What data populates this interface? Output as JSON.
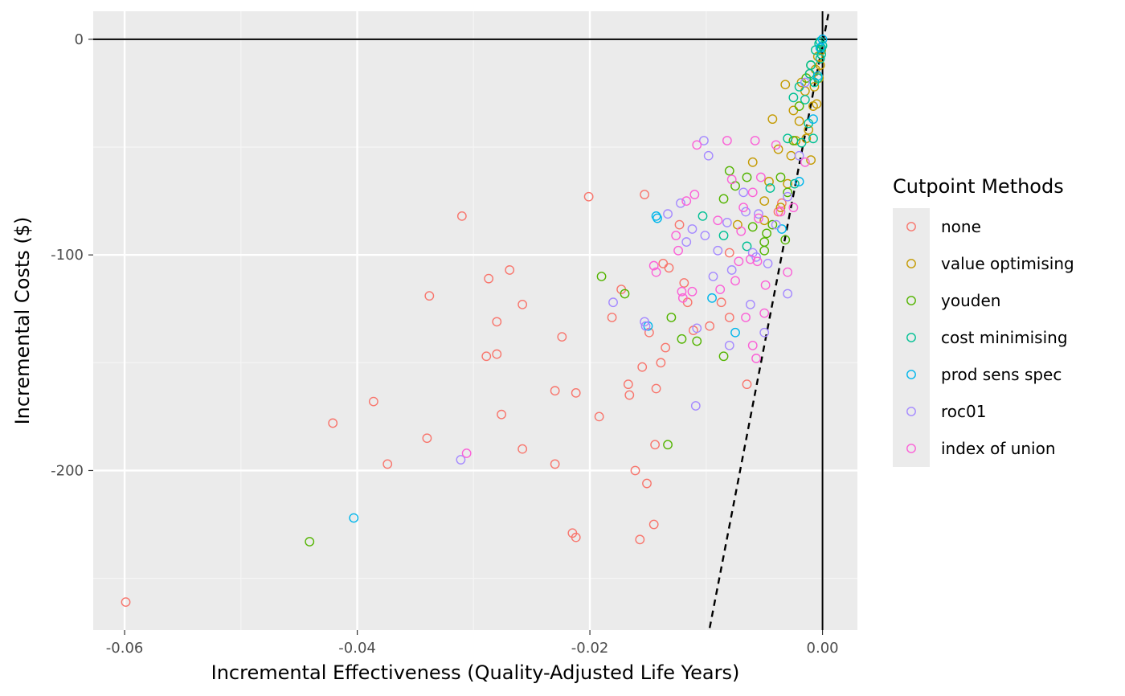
{
  "chart_data": {
    "type": "scatter",
    "title": "",
    "xlabel": "Incremental Effectiveness (Quality-Adjusted Life Years)",
    "ylabel": "Incremental Costs ($)",
    "xlim": [
      -0.0627,
      0.003
    ],
    "ylim": [
      -274,
      13
    ],
    "x_ticks": [
      -0.06,
      -0.04,
      -0.02,
      0.0
    ],
    "x_tick_labels": [
      "-0.06",
      "-0.04",
      "-0.02",
      "0.00"
    ],
    "y_ticks": [
      0,
      -100,
      -200
    ],
    "y_tick_labels": [
      "0",
      "-100",
      "-200"
    ],
    "grid": true,
    "legend_title": "Cutpoint Methods",
    "legend_position": "right",
    "reference_lines": {
      "horizontal_y": 0,
      "vertical_x": 0,
      "threshold_line": {
        "style": "dashed",
        "points": [
          [
            -0.0097,
            -273
          ],
          [
            0.00055,
            13
          ]
        ]
      }
    },
    "series": [
      {
        "name": "none",
        "color": "#F8766D",
        "points": [
          [
            -0.0599,
            -261
          ],
          [
            -0.0421,
            -178
          ],
          [
            -0.0386,
            -168
          ],
          [
            -0.0374,
            -197
          ],
          [
            -0.034,
            -185
          ],
          [
            -0.0338,
            -119
          ],
          [
            -0.031,
            -82
          ],
          [
            -0.0287,
            -111
          ],
          [
            -0.0289,
            -147
          ],
          [
            -0.028,
            -146
          ],
          [
            -0.028,
            -131
          ],
          [
            -0.0276,
            -174
          ],
          [
            -0.0269,
            -107
          ],
          [
            -0.0258,
            -123
          ],
          [
            -0.0258,
            -190
          ],
          [
            -0.023,
            -163
          ],
          [
            -0.023,
            -197
          ],
          [
            -0.0224,
            -138
          ],
          [
            -0.0215,
            -229
          ],
          [
            -0.0212,
            -231
          ],
          [
            -0.0212,
            -164
          ],
          [
            -0.0201,
            -73
          ],
          [
            -0.0192,
            -175
          ],
          [
            -0.0181,
            -129
          ],
          [
            -0.0173,
            -116
          ],
          [
            -0.0167,
            -160
          ],
          [
            -0.0166,
            -165
          ],
          [
            -0.0161,
            -200
          ],
          [
            -0.0157,
            -232
          ],
          [
            -0.0155,
            -152
          ],
          [
            -0.0153,
            -72
          ],
          [
            -0.0151,
            -206
          ],
          [
            -0.0149,
            -136
          ],
          [
            -0.0145,
            -225
          ],
          [
            -0.0144,
            -188
          ],
          [
            -0.0143,
            -162
          ],
          [
            -0.0139,
            -150
          ],
          [
            -0.0137,
            -104
          ],
          [
            -0.0135,
            -143
          ],
          [
            -0.0132,
            -106
          ],
          [
            -0.0123,
            -86
          ],
          [
            -0.0119,
            -113
          ],
          [
            -0.0116,
            -122
          ],
          [
            -0.0111,
            -135
          ],
          [
            -0.0097,
            -133
          ],
          [
            -0.0087,
            -122
          ],
          [
            -0.008,
            -99
          ],
          [
            -0.008,
            -129
          ],
          [
            -0.0065,
            -160
          ],
          [
            -0.0038,
            -80
          ],
          [
            -0.0035,
            -76
          ]
        ]
      },
      {
        "name": "value optimising",
        "color": "#C49A00",
        "points": [
          [
            -0.0073,
            -86
          ],
          [
            -0.006,
            -57
          ],
          [
            -0.005,
            -84
          ],
          [
            -0.005,
            -75
          ],
          [
            -0.0046,
            -66
          ],
          [
            -0.0043,
            -37
          ],
          [
            -0.0038,
            -51
          ],
          [
            -0.0036,
            -78
          ],
          [
            -0.0032,
            -21
          ],
          [
            -0.003,
            -67
          ],
          [
            -0.0027,
            -54
          ],
          [
            -0.0025,
            -33
          ],
          [
            -0.0023,
            -47
          ],
          [
            -0.002,
            -38
          ],
          [
            -0.0018,
            -20
          ],
          [
            -0.0015,
            -24
          ],
          [
            -0.0014,
            -46
          ],
          [
            -0.0012,
            -42
          ],
          [
            -0.0011,
            -16
          ],
          [
            -0.001,
            -56
          ],
          [
            -0.0008,
            -31
          ],
          [
            -0.0007,
            -22
          ],
          [
            -0.0006,
            -14
          ],
          [
            -0.0005,
            -30
          ],
          [
            -0.0004,
            -8
          ],
          [
            -0.0003,
            -18
          ],
          [
            -0.0002,
            -12
          ],
          [
            -0.0001,
            -5
          ]
        ]
      },
      {
        "name": "youden",
        "color": "#53B400",
        "points": [
          [
            -0.0441,
            -233
          ],
          [
            -0.019,
            -110
          ],
          [
            -0.017,
            -118
          ],
          [
            -0.0133,
            -188
          ],
          [
            -0.013,
            -129
          ],
          [
            -0.0121,
            -139
          ],
          [
            -0.0108,
            -140
          ],
          [
            -0.0085,
            -147
          ],
          [
            -0.0085,
            -74
          ],
          [
            -0.008,
            -61
          ],
          [
            -0.0075,
            -68
          ],
          [
            -0.0065,
            -64
          ],
          [
            -0.006,
            -87
          ],
          [
            -0.005,
            -94
          ],
          [
            -0.005,
            -98
          ],
          [
            -0.0048,
            -90
          ],
          [
            -0.0043,
            -86
          ],
          [
            -0.0036,
            -64
          ],
          [
            -0.0032,
            -93
          ],
          [
            -0.003,
            -71
          ],
          [
            -0.0025,
            -47
          ],
          [
            -0.002,
            -31
          ],
          [
            -0.0014,
            -18
          ],
          [
            -0.001,
            -12
          ]
        ]
      },
      {
        "name": "cost minimising",
        "color": "#00C094",
        "points": [
          [
            -0.0103,
            -82
          ],
          [
            -0.0085,
            -91
          ],
          [
            -0.0065,
            -96
          ],
          [
            -0.0045,
            -69
          ],
          [
            -0.003,
            -46
          ],
          [
            -0.0025,
            -27
          ],
          [
            -0.0024,
            -67
          ],
          [
            -0.002,
            -22
          ],
          [
            -0.0018,
            -48
          ],
          [
            -0.0015,
            -28
          ],
          [
            -0.0012,
            -39
          ],
          [
            -0.0011,
            -16
          ],
          [
            -0.001,
            -12
          ],
          [
            -0.0008,
            -46
          ],
          [
            -0.0007,
            -20
          ],
          [
            -0.0006,
            -5
          ],
          [
            -0.0004,
            -18
          ],
          [
            -0.0003,
            -2
          ],
          [
            -0.0002,
            -1
          ],
          [
            -0.0001,
            -4
          ],
          [
            0.0,
            -3
          ],
          [
            -0.0001,
            -7
          ],
          [
            -0.0002,
            -9
          ]
        ]
      },
      {
        "name": "prod sens spec",
        "color": "#00B6EB",
        "points": [
          [
            -0.0403,
            -222
          ],
          [
            -0.0143,
            -82
          ],
          [
            -0.0142,
            -83
          ],
          [
            -0.015,
            -133
          ],
          [
            -0.0095,
            -120
          ],
          [
            -0.0075,
            -136
          ],
          [
            -0.0035,
            -88
          ],
          [
            -0.002,
            -66
          ],
          [
            -0.0008,
            -37
          ],
          [
            -0.0004,
            -17
          ],
          [
            -0.0002,
            -4
          ],
          [
            0.0,
            0
          ]
        ]
      },
      {
        "name": "roc01",
        "color": "#A58AFF",
        "points": [
          [
            -0.0311,
            -195
          ],
          [
            -0.018,
            -122
          ],
          [
            -0.0153,
            -131
          ],
          [
            -0.0152,
            -133
          ],
          [
            -0.0133,
            -81
          ],
          [
            -0.0122,
            -76
          ],
          [
            -0.0117,
            -94
          ],
          [
            -0.0112,
            -88
          ],
          [
            -0.0109,
            -170
          ],
          [
            -0.0108,
            -134
          ],
          [
            -0.0102,
            -47
          ],
          [
            -0.0101,
            -91
          ],
          [
            -0.0098,
            -54
          ],
          [
            -0.0094,
            -110
          ],
          [
            -0.009,
            -98
          ],
          [
            -0.0082,
            -85
          ],
          [
            -0.008,
            -142
          ],
          [
            -0.0078,
            -107
          ],
          [
            -0.0068,
            -71
          ],
          [
            -0.0066,
            -80
          ],
          [
            -0.0062,
            -123
          ],
          [
            -0.006,
            -99
          ],
          [
            -0.0057,
            -101
          ],
          [
            -0.0055,
            -81
          ],
          [
            -0.005,
            -136
          ],
          [
            -0.0047,
            -104
          ],
          [
            -0.004,
            -86
          ],
          [
            -0.003,
            -118
          ],
          [
            -0.003,
            -73
          ],
          [
            -0.002,
            -54
          ],
          [
            -0.0015,
            -20
          ]
        ]
      },
      {
        "name": "index of union",
        "color": "#FB61D7",
        "points": [
          [
            -0.0306,
            -192
          ],
          [
            -0.0145,
            -105
          ],
          [
            -0.0143,
            -108
          ],
          [
            -0.0126,
            -91
          ],
          [
            -0.0124,
            -98
          ],
          [
            -0.0121,
            -117
          ],
          [
            -0.012,
            -120
          ],
          [
            -0.0117,
            -75
          ],
          [
            -0.0112,
            -117
          ],
          [
            -0.011,
            -72
          ],
          [
            -0.0108,
            -49
          ],
          [
            -0.009,
            -84
          ],
          [
            -0.0088,
            -116
          ],
          [
            -0.0082,
            -47
          ],
          [
            -0.0078,
            -65
          ],
          [
            -0.0075,
            -112
          ],
          [
            -0.0072,
            -103
          ],
          [
            -0.007,
            -89
          ],
          [
            -0.0068,
            -78
          ],
          [
            -0.0066,
            -129
          ],
          [
            -0.0062,
            -102
          ],
          [
            -0.006,
            -142
          ],
          [
            -0.006,
            -71
          ],
          [
            -0.0058,
            -47
          ],
          [
            -0.0057,
            -148
          ],
          [
            -0.0056,
            -103
          ],
          [
            -0.0055,
            -83
          ],
          [
            -0.0053,
            -64
          ],
          [
            -0.005,
            -127
          ],
          [
            -0.0049,
            -114
          ],
          [
            -0.004,
            -49
          ],
          [
            -0.0036,
            -80
          ],
          [
            -0.003,
            -108
          ],
          [
            -0.0025,
            -78
          ],
          [
            -0.0015,
            -57
          ]
        ]
      }
    ]
  }
}
